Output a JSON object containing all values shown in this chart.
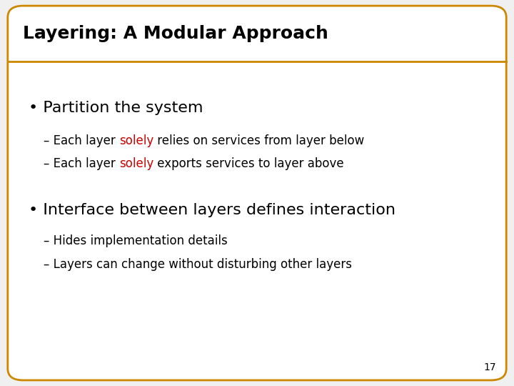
{
  "title": "Layering: A Modular Approach",
  "title_fontsize": 18,
  "title_color": "#000000",
  "border_color": "#cc8800",
  "bg_color": "#ffffff",
  "slide_bg_color": "#f0f0f0",
  "bullet1": "• Partition the system",
  "bullet1_size": 16,
  "sub1a_prefix": "– Each layer ",
  "sub1a_keyword": "solely",
  "sub1a_suffix": " relies on services from layer below",
  "sub1b_prefix": "– Each layer ",
  "sub1b_keyword": "solely",
  "sub1b_suffix": " exports services to layer above",
  "sub_size": 12,
  "bullet2": "• Interface between layers defines interaction",
  "bullet2_size": 16,
  "sub2a": "– Hides implementation details",
  "sub2b": "– Layers can change without disturbing other layers",
  "keyword_color": "#cc0000",
  "text_color": "#000000",
  "page_number": "17",
  "page_num_size": 10,
  "border_lw": 2.0,
  "title_bar_height": 0.145,
  "rounding": 0.03
}
